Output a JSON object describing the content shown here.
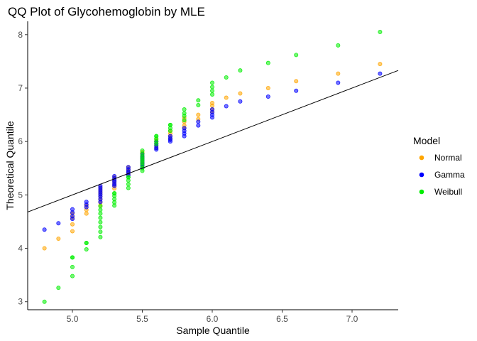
{
  "chart_data": {
    "type": "scatter",
    "title": "QQ Plot of Glycohemoglobin by MLE",
    "xlabel": "Sample Quantile",
    "ylabel": "Theoretical Quantile",
    "xlim": [
      4.68,
      7.33
    ],
    "ylim": [
      2.85,
      8.25
    ],
    "x_ticks": [
      "5.0",
      "5.5",
      "6.0",
      "6.5",
      "7.0"
    ],
    "y_ticks": [
      "3",
      "4",
      "5",
      "6",
      "7",
      "8"
    ],
    "grid": false,
    "legend": {
      "title": "Model",
      "position": "right"
    },
    "reference_line": {
      "slope": 1,
      "intercept": 0
    },
    "x": [
      4.8,
      4.9,
      5.0,
      5.0,
      5.0,
      5.0,
      5.1,
      5.1,
      5.1,
      5.2,
      5.2,
      5.2,
      5.2,
      5.2,
      5.2,
      5.2,
      5.2,
      5.3,
      5.3,
      5.3,
      5.3,
      5.3,
      5.3,
      5.4,
      5.4,
      5.4,
      5.4,
      5.4,
      5.5,
      5.5,
      5.5,
      5.5,
      5.5,
      5.5,
      5.5,
      5.5,
      5.5,
      5.6,
      5.6,
      5.6,
      5.6,
      5.6,
      5.7,
      5.7,
      5.7,
      5.7,
      5.8,
      5.8,
      5.8,
      5.8,
      5.9,
      5.9,
      6.0,
      6.0,
      6.0,
      6.0,
      6.1,
      6.2,
      6.4,
      6.6,
      6.9,
      7.2
    ],
    "series": [
      {
        "name": "Normal",
        "color": "#FFA500",
        "values": [
          4.0,
          4.18,
          4.32,
          4.45,
          4.57,
          4.65,
          4.65,
          4.72,
          4.8,
          4.8,
          4.86,
          4.92,
          4.97,
          5.02,
          5.06,
          5.1,
          5.14,
          5.12,
          5.17,
          5.21,
          5.25,
          5.29,
          5.33,
          5.38,
          5.42,
          5.45,
          5.48,
          5.52,
          5.55,
          5.58,
          5.61,
          5.64,
          5.67,
          5.7,
          5.73,
          5.77,
          5.8,
          5.88,
          5.92,
          5.96,
          6.0,
          6.04,
          6.05,
          6.1,
          6.15,
          6.2,
          6.25,
          6.3,
          6.37,
          6.44,
          6.42,
          6.5,
          6.55,
          6.6,
          6.67,
          6.72,
          6.82,
          6.9,
          7.0,
          7.13,
          7.27,
          7.45
        ]
      },
      {
        "name": "Gamma",
        "color": "#0000FF",
        "values": [
          4.35,
          4.47,
          4.55,
          4.6,
          4.67,
          4.73,
          4.77,
          4.82,
          4.87,
          4.87,
          4.92,
          4.97,
          5.01,
          5.05,
          5.09,
          5.13,
          5.17,
          5.17,
          5.2,
          5.24,
          5.27,
          5.31,
          5.35,
          5.37,
          5.41,
          5.44,
          5.48,
          5.52,
          5.52,
          5.55,
          5.58,
          5.61,
          5.64,
          5.67,
          5.7,
          5.73,
          5.77,
          5.85,
          5.88,
          5.92,
          5.96,
          6.0,
          6.0,
          6.03,
          6.06,
          6.1,
          6.1,
          6.15,
          6.2,
          6.25,
          6.3,
          6.37,
          6.45,
          6.5,
          6.55,
          6.6,
          6.66,
          6.75,
          6.84,
          6.95,
          7.1,
          7.27
        ]
      },
      {
        "name": "Weibull",
        "color": "#00EE00",
        "values": [
          3.0,
          3.26,
          3.48,
          3.65,
          3.83,
          3.83,
          3.98,
          4.1,
          4.1,
          4.21,
          4.31,
          4.4,
          4.49,
          4.57,
          4.65,
          4.72,
          4.79,
          4.8,
          4.86,
          4.92,
          4.98,
          5.03,
          5.03,
          5.13,
          5.2,
          5.27,
          5.33,
          5.33,
          5.45,
          5.5,
          5.55,
          5.6,
          5.64,
          5.68,
          5.72,
          5.77,
          5.83,
          5.95,
          6.0,
          6.05,
          6.1,
          6.1,
          6.2,
          6.25,
          6.31,
          6.31,
          6.4,
          6.48,
          6.53,
          6.6,
          6.68,
          6.77,
          6.88,
          6.95,
          7.02,
          7.1,
          7.2,
          7.33,
          7.47,
          7.62,
          7.8,
          8.05
        ]
      }
    ]
  }
}
